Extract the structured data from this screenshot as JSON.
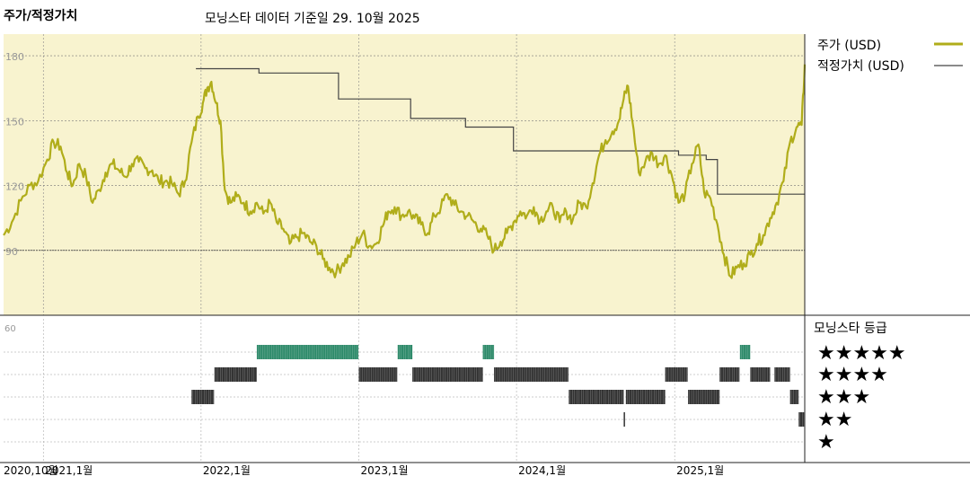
{
  "header": {
    "title": "주가/적정가치",
    "subtitle": "모닝스타 데이터 기준일 29. 10월 2025"
  },
  "legend": {
    "price_label": "주가 (USD)",
    "fair_value_label": "적정가치 (USD)",
    "rating_title": "모닝스타 등급",
    "rating_rows": [
      "★★★★★",
      "★★★★",
      "★★★",
      "★★",
      "★"
    ]
  },
  "colors": {
    "plot_bg": "#f8f3cf",
    "price": "#b0ad1a",
    "fair_value": "#444444",
    "rating_5": "#2e8a6a",
    "rating_other": "#333333"
  },
  "chart_data": [
    {
      "type": "line",
      "title": "주가/적정가치",
      "ylim": [
        60,
        190
      ],
      "yticks": [
        "180",
        "150",
        "120",
        "90"
      ],
      "xticks": [
        "2020,10월",
        "2021,1월",
        "2022,1월",
        "2023,1월",
        "2024,1월",
        "2025,1월"
      ],
      "x_range": [
        "2020-10-01",
        "2025-10-29"
      ],
      "series": [
        {
          "name": "주가 (USD)",
          "points": [
            [
              "2020-10-01",
              97
            ],
            [
              "2020-10-20",
              103
            ],
            [
              "2020-11-10",
              113
            ],
            [
              "2020-12-01",
              120
            ],
            [
              "2020-12-20",
              122
            ],
            [
              "2021-01-10",
              132
            ],
            [
              "2021-01-25",
              140
            ],
            [
              "2021-02-10",
              138
            ],
            [
              "2021-02-25",
              126
            ],
            [
              "2021-03-10",
              120
            ],
            [
              "2021-03-25",
              130
            ],
            [
              "2021-04-10",
              124
            ],
            [
              "2021-04-25",
              112
            ],
            [
              "2021-05-10",
              118
            ],
            [
              "2021-05-25",
              126
            ],
            [
              "2021-06-10",
              130
            ],
            [
              "2021-06-25",
              127
            ],
            [
              "2021-07-10",
              124
            ],
            [
              "2021-07-25",
              130
            ],
            [
              "2021-08-10",
              131
            ],
            [
              "2021-08-25",
              128
            ],
            [
              "2021-09-10",
              127
            ],
            [
              "2021-09-25",
              122
            ],
            [
              "2021-10-10",
              122
            ],
            [
              "2021-10-25",
              121
            ],
            [
              "2021-11-10",
              116
            ],
            [
              "2021-11-25",
              122
            ],
            [
              "2021-12-10",
              140
            ],
            [
              "2021-12-25",
              152
            ],
            [
              "2022-01-05",
              158
            ],
            [
              "2022-01-15",
              165
            ],
            [
              "2022-01-25",
              168
            ],
            [
              "2022-02-05",
              158
            ],
            [
              "2022-02-15",
              150
            ],
            [
              "2022-02-25",
              118
            ],
            [
              "2022-03-10",
              112
            ],
            [
              "2022-03-25",
              115
            ],
            [
              "2022-04-10",
              112
            ],
            [
              "2022-04-25",
              108
            ],
            [
              "2022-05-10",
              112
            ],
            [
              "2022-05-25",
              107
            ],
            [
              "2022-06-10",
              112
            ],
            [
              "2022-06-25",
              103
            ],
            [
              "2022-07-10",
              100
            ],
            [
              "2022-07-25",
              93
            ],
            [
              "2022-08-10",
              96
            ],
            [
              "2022-08-25",
              98
            ],
            [
              "2022-09-10",
              94
            ],
            [
              "2022-09-25",
              92
            ],
            [
              "2022-10-10",
              86
            ],
            [
              "2022-10-25",
              82
            ],
            [
              "2022-11-10",
              80
            ],
            [
              "2022-11-25",
              84
            ],
            [
              "2022-12-10",
              87
            ],
            [
              "2022-12-25",
              93
            ],
            [
              "2023-01-10",
              98
            ],
            [
              "2023-01-25",
              92
            ],
            [
              "2023-02-10",
              93
            ],
            [
              "2023-02-25",
              101
            ],
            [
              "2023-03-10",
              108
            ],
            [
              "2023-03-25",
              110
            ],
            [
              "2023-04-10",
              106
            ],
            [
              "2023-04-25",
              108
            ],
            [
              "2023-05-10",
              105
            ],
            [
              "2023-05-25",
              102
            ],
            [
              "2023-06-10",
              98
            ],
            [
              "2023-06-25",
              106
            ],
            [
              "2023-07-10",
              110
            ],
            [
              "2023-07-25",
              116
            ],
            [
              "2023-08-10",
              111
            ],
            [
              "2023-08-25",
              108
            ],
            [
              "2023-09-10",
              106
            ],
            [
              "2023-09-25",
              103
            ],
            [
              "2023-10-10",
              100
            ],
            [
              "2023-10-25",
              97
            ],
            [
              "2023-11-10",
              90
            ],
            [
              "2023-11-25",
              94
            ],
            [
              "2023-12-10",
              98
            ],
            [
              "2023-12-25",
              103
            ],
            [
              "2024-01-10",
              108
            ],
            [
              "2024-01-25",
              106
            ],
            [
              "2024-02-10",
              110
            ],
            [
              "2024-02-25",
              104
            ],
            [
              "2024-03-10",
              108
            ],
            [
              "2024-03-25",
              110
            ],
            [
              "2024-04-10",
              103
            ],
            [
              "2024-04-25",
              108
            ],
            [
              "2024-05-10",
              104
            ],
            [
              "2024-05-25",
              112
            ],
            [
              "2024-06-10",
              110
            ],
            [
              "2024-06-25",
              121
            ],
            [
              "2024-07-10",
              134
            ],
            [
              "2024-07-25",
              141
            ],
            [
              "2024-08-10",
              145
            ],
            [
              "2024-08-25",
              150
            ],
            [
              "2024-09-05",
              160
            ],
            [
              "2024-09-15",
              166
            ],
            [
              "2024-09-25",
              150
            ],
            [
              "2024-10-10",
              126
            ],
            [
              "2024-10-25",
              131
            ],
            [
              "2024-11-10",
              135
            ],
            [
              "2024-11-25",
              130
            ],
            [
              "2024-12-10",
              134
            ],
            [
              "2024-12-25",
              125
            ],
            [
              "2025-01-10",
              112
            ],
            [
              "2025-01-25",
              116
            ],
            [
              "2025-02-10",
              130
            ],
            [
              "2025-02-25",
              139
            ],
            [
              "2025-03-10",
              117
            ],
            [
              "2025-03-25",
              114
            ],
            [
              "2025-04-10",
              102
            ],
            [
              "2025-04-25",
              88
            ],
            [
              "2025-05-10",
              78
            ],
            [
              "2025-05-25",
              82
            ],
            [
              "2025-06-10",
              84
            ],
            [
              "2025-06-25",
              88
            ],
            [
              "2025-07-10",
              93
            ],
            [
              "2025-07-25",
              97
            ],
            [
              "2025-08-10",
              105
            ],
            [
              "2025-08-25",
              112
            ],
            [
              "2025-09-10",
              122
            ],
            [
              "2025-09-25",
              140
            ],
            [
              "2025-10-10",
              147
            ],
            [
              "2025-10-22",
              148
            ],
            [
              "2025-10-29",
              176
            ]
          ]
        },
        {
          "name": "적정가치 (USD)",
          "points": [
            [
              "2021-12-20",
              174
            ],
            [
              "2022-05-15",
              174
            ],
            [
              "2022-05-15",
              172
            ],
            [
              "2022-11-15",
              172
            ],
            [
              "2022-11-15",
              160
            ],
            [
              "2023-05-01",
              160
            ],
            [
              "2023-05-01",
              151
            ],
            [
              "2023-09-05",
              151
            ],
            [
              "2023-09-05",
              147
            ],
            [
              "2023-12-25",
              147
            ],
            [
              "2023-12-25",
              136
            ],
            [
              "2025-01-10",
              136
            ],
            [
              "2025-01-10",
              134
            ],
            [
              "2025-03-15",
              134
            ],
            [
              "2025-03-15",
              132
            ],
            [
              "2025-04-10",
              132
            ],
            [
              "2025-04-10",
              116
            ],
            [
              "2025-10-29",
              116
            ]
          ]
        }
      ]
    },
    {
      "type": "heatmap",
      "title": "모닝스타 등급",
      "rows": [
        "★★★★★",
        "★★★★",
        "★★★",
        "★★",
        "★"
      ],
      "periods": [
        {
          "stars": 3,
          "start": "2021-12-10",
          "end": "2022-01-31"
        },
        {
          "stars": 4,
          "start": "2022-02-01",
          "end": "2022-05-10"
        },
        {
          "stars": 5,
          "start": "2022-05-10",
          "end": "2022-12-31"
        },
        {
          "stars": 4,
          "start": "2023-01-01",
          "end": "2023-03-31"
        },
        {
          "stars": 5,
          "start": "2023-04-01",
          "end": "2023-05-05"
        },
        {
          "stars": 4,
          "start": "2023-05-05",
          "end": "2023-10-15"
        },
        {
          "stars": 5,
          "start": "2023-10-15",
          "end": "2023-11-10"
        },
        {
          "stars": 4,
          "start": "2023-11-10",
          "end": "2024-04-30"
        },
        {
          "stars": 3,
          "start": "2024-05-01",
          "end": "2024-09-05"
        },
        {
          "stars": 2,
          "start": "2024-09-05",
          "end": "2024-09-10"
        },
        {
          "stars": 3,
          "start": "2024-09-10",
          "end": "2024-12-10"
        },
        {
          "stars": 4,
          "start": "2024-12-10",
          "end": "2025-01-31"
        },
        {
          "stars": 3,
          "start": "2025-02-01",
          "end": "2025-04-15"
        },
        {
          "stars": 4,
          "start": "2025-04-15",
          "end": "2025-05-31"
        },
        {
          "stars": 5,
          "start": "2025-06-01",
          "end": "2025-06-25"
        },
        {
          "stars": 4,
          "start": "2025-06-25",
          "end": "2025-08-10"
        },
        {
          "stars": 4,
          "start": "2025-08-20",
          "end": "2025-09-25"
        },
        {
          "stars": 3,
          "start": "2025-09-25",
          "end": "2025-10-15"
        },
        {
          "stars": 2,
          "start": "2025-10-15",
          "end": "2025-10-29"
        }
      ]
    }
  ]
}
